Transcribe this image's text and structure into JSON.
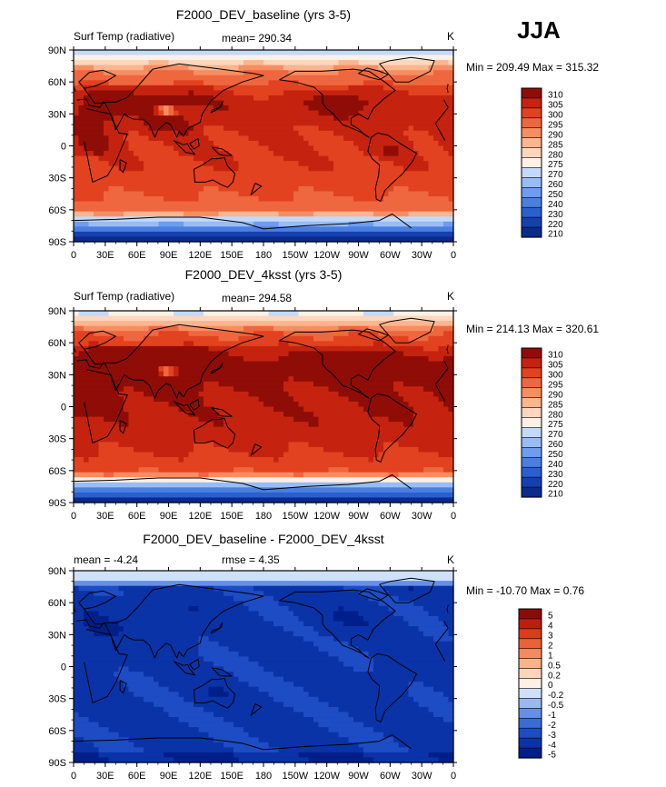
{
  "season": "JJA",
  "panels": [
    {
      "title": "F2000_DEV_baseline (yrs 3-5)",
      "left_label": "Surf Temp (radiative)",
      "center_label": "mean= 290.34",
      "units": "K",
      "minmax": "Min = 209.49 Max = 315.32",
      "field": "abs",
      "colorbar_labels": [
        "310",
        "305",
        "300",
        "295",
        "290",
        "285",
        "280",
        "275",
        "270",
        "260",
        "250",
        "240",
        "230",
        "220",
        "210"
      ]
    },
    {
      "title": "F2000_DEV_4ksst (yrs 3-5)",
      "left_label": "Surf Temp (radiative)",
      "center_label": "mean= 294.58",
      "units": "K",
      "minmax": "Min = 214.13 Max = 320.61",
      "field": "abs4k",
      "colorbar_labels": [
        "310",
        "305",
        "300",
        "295",
        "290",
        "285",
        "280",
        "275",
        "270",
        "260",
        "250",
        "240",
        "230",
        "220",
        "210"
      ]
    },
    {
      "title": "F2000_DEV_baseline - F2000_DEV_4ksst",
      "left_label": "mean =   -4.24",
      "center_label": "rmse =   4.35",
      "units": "K",
      "minmax": "Min = -10.70 Max =    0.76",
      "field": "diff",
      "colorbar_labels": [
        "5",
        "4",
        "3",
        "2",
        "1",
        "0.5",
        "0.2",
        "0",
        "-0.2",
        "-0.5",
        "-1",
        "-2",
        "-3",
        "-4",
        "-5"
      ]
    }
  ],
  "chart_data": {
    "type": "heatmap",
    "x_ticks": [
      "0",
      "30E",
      "60E",
      "90E",
      "120E",
      "150E",
      "180",
      "150W",
      "120W",
      "90W",
      "60W",
      "30W",
      "0"
    ],
    "y_ticks": [
      "90N",
      "60N",
      "30N",
      "0",
      "30S",
      "60S",
      "90S"
    ],
    "abs_colors": [
      "#0a2a8c",
      "#1540b0",
      "#2a5fd0",
      "#4a7fe0",
      "#6d9cf0",
      "#97bcf6",
      "#c3d9fa",
      "#fdf0e4",
      "#fdd6bd",
      "#fbb58f",
      "#f68e62",
      "#ef673e",
      "#e2421f",
      "#c5230f",
      "#8f0d06"
    ],
    "diff_colors": [
      "#001f8a",
      "#0a33a8",
      "#1d4cc4",
      "#3a6cd8",
      "#6690e6",
      "#9ab8f2",
      "#cfe0fa",
      "#fdf0e6",
      "#fcd5bc",
      "#f9b28e",
      "#f38a60",
      "#ea6238",
      "#d93d1c",
      "#ba1f0e",
      "#8b0c05"
    ]
  }
}
